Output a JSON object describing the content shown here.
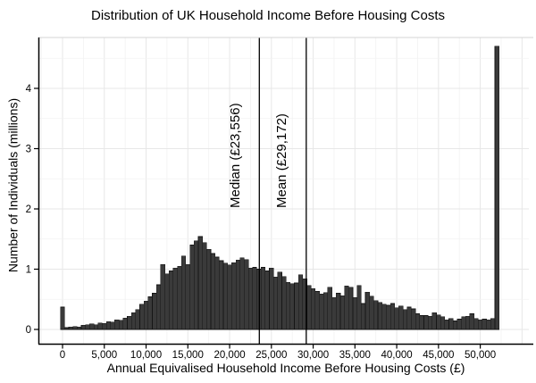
{
  "chart_data": {
    "type": "bar",
    "subtype": "histogram",
    "title": "Distribution of UK Household Income Before Housing Costs",
    "xlabel": "Annual Equivalised Household Income Before Housing Costs (£)",
    "ylabel": "Number of Individuals (millions)",
    "bin_width": 500,
    "bin_center_start": 0,
    "x_ticks": [
      0,
      5000,
      10000,
      15000,
      20000,
      25000,
      30000,
      35000,
      40000,
      45000,
      50000
    ],
    "x_tick_labels": [
      "0",
      "5,000",
      "10,000",
      "15,000",
      "20,000",
      "25,000",
      "30,000",
      "35,000",
      "40,000",
      "45,000",
      "50,000"
    ],
    "y_ticks": [
      0,
      1,
      2,
      3,
      4
    ],
    "y_tick_labels": [
      "0",
      "1",
      "2",
      "3",
      "4"
    ],
    "xlim": [
      -2900,
      55400
    ],
    "ylim": [
      -0.25,
      4.95
    ],
    "grid": true,
    "legend_position": "none",
    "bar_color": "#3a3a3a",
    "bar_edge_color": "#161616",
    "grid_minor_color": "#f2f2f2",
    "grid_major_color": "#e7e7e7",
    "axis_color": "#000000",
    "values": [
      0.37,
      0.03,
      0.04,
      0.05,
      0.04,
      0.07,
      0.08,
      0.09,
      0.08,
      0.11,
      0.1,
      0.13,
      0.12,
      0.16,
      0.15,
      0.19,
      0.22,
      0.28,
      0.33,
      0.42,
      0.47,
      0.54,
      0.6,
      0.74,
      1.08,
      0.92,
      0.97,
      1.02,
      1.05,
      1.22,
      1.08,
      1.4,
      1.47,
      1.54,
      1.44,
      1.33,
      1.26,
      1.2,
      1.14,
      1.1,
      1.07,
      1.11,
      1.15,
      1.19,
      1.16,
      1.02,
      1.03,
      1.0,
      1.03,
      0.97,
      1.02,
      0.87,
      0.95,
      0.88,
      0.78,
      0.76,
      0.77,
      0.91,
      0.84,
      0.73,
      0.68,
      0.63,
      0.59,
      0.61,
      0.7,
      0.53,
      0.6,
      0.56,
      0.72,
      0.7,
      0.53,
      0.73,
      0.43,
      0.62,
      0.55,
      0.48,
      0.45,
      0.42,
      0.4,
      0.43,
      0.36,
      0.39,
      0.33,
      0.37,
      0.34,
      0.26,
      0.23,
      0.23,
      0.22,
      0.28,
      0.24,
      0.21,
      0.16,
      0.18,
      0.14,
      0.17,
      0.21,
      0.22,
      0.26,
      0.18,
      0.16,
      0.17,
      0.16,
      0.18,
      4.7
    ],
    "annotations": [
      {
        "label": "Median (£23,556)",
        "value": 23556
      },
      {
        "label": "Mean (£29,172)",
        "value": 29172
      }
    ]
  }
}
